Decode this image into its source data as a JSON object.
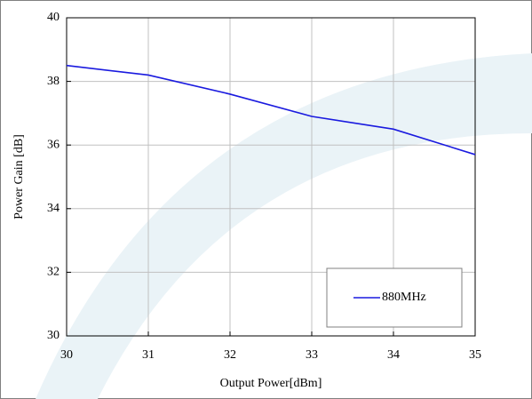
{
  "chart_data": {
    "type": "line",
    "x": [
      30,
      31,
      32,
      33,
      34,
      35
    ],
    "series": [
      {
        "name": "880MHz",
        "color": "#1a1adf",
        "values": [
          38.5,
          38.2,
          37.6,
          36.9,
          36.5,
          35.7
        ]
      }
    ],
    "xlim": [
      30,
      35
    ],
    "xticks": [
      30,
      31,
      32,
      33,
      34,
      35
    ],
    "ylim": [
      30,
      40
    ],
    "yticks": [
      30,
      32,
      34,
      36,
      38,
      40
    ],
    "xlabel": "Output Power[dBm]",
    "ylabel": "Power Gain [dB]",
    "grid": true,
    "legend": "lower right"
  }
}
